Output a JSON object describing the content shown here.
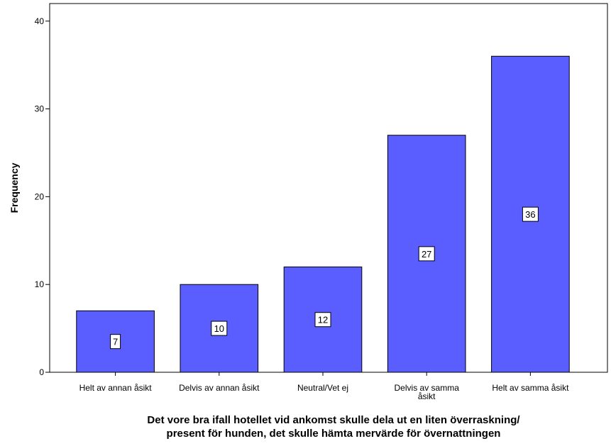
{
  "chart_data": {
    "type": "bar",
    "categories": [
      [
        "Helt av annan åsikt"
      ],
      [
        "Delvis av annan åsikt"
      ],
      [
        "Neutral/Vet ej"
      ],
      [
        "Delvis av samma",
        "åsikt"
      ],
      [
        "Helt av samma åsikt"
      ]
    ],
    "values": [
      7,
      10,
      12,
      27,
      36
    ],
    "data_labels": [
      "7",
      "10",
      "12",
      "27",
      "36"
    ],
    "ylabel": "Frequency",
    "xlabel": [
      "Det vore bra ifall hotellet vid ankomst skulle dela ut en liten överraskning/",
      "present för hunden, det skulle hämta mervärde för övernattningen"
    ],
    "ylim": [
      0,
      42
    ],
    "yticks": [
      "0",
      "10",
      "20",
      "30",
      "40"
    ],
    "bar_color": "#5a5eff",
    "grid": false
  }
}
